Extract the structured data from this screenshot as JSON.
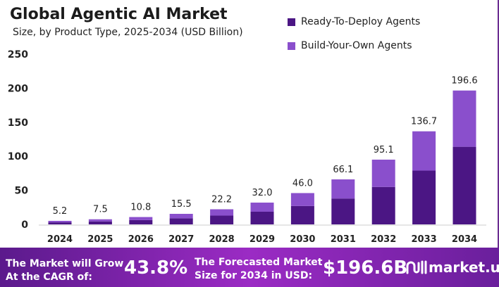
{
  "chart_data": {
    "type": "bar",
    "stacked": true,
    "title": "Global Agentic AI Market",
    "subtitle": "Size, by Product Type, 2025-2034 (USD Billion)",
    "categories": [
      "2024",
      "2025",
      "2026",
      "2027",
      "2028",
      "2029",
      "2030",
      "2031",
      "2032",
      "2033",
      "2034"
    ],
    "series": [
      {
        "name": "Ready-To-Deploy Agents",
        "color": "#4b1684",
        "values": [
          3.0,
          4.4,
          6.3,
          9.0,
          12.9,
          18.6,
          27.0,
          38.0,
          55.0,
          79.0,
          114.0
        ]
      },
      {
        "name": "Build-Your-Own Agents",
        "color": "#8a4fcc",
        "values": [
          2.2,
          3.1,
          4.5,
          6.5,
          9.3,
          13.4,
          19.0,
          28.1,
          40.1,
          57.7,
          82.6
        ]
      }
    ],
    "totals": [
      "5.2",
      "7.5",
      "10.8",
      "15.5",
      "22.2",
      "32.0",
      "46.0",
      "66.1",
      "95.1",
      "136.7",
      "196.6"
    ],
    "ylim": [
      0,
      250
    ],
    "yticks": [
      "0",
      "50",
      "100",
      "150",
      "200",
      "250"
    ],
    "grid": false,
    "legend": "top-right"
  },
  "footer": {
    "cagr_label_1": "The Market will Grow",
    "cagr_label_2": "At the CAGR of:",
    "cagr_value": "43.8%",
    "forecast_label_1": "The Forecasted Market",
    "forecast_label_2": "Size for 2034 in USD:",
    "forecast_value": "$196.6B",
    "logo": "market.us"
  }
}
